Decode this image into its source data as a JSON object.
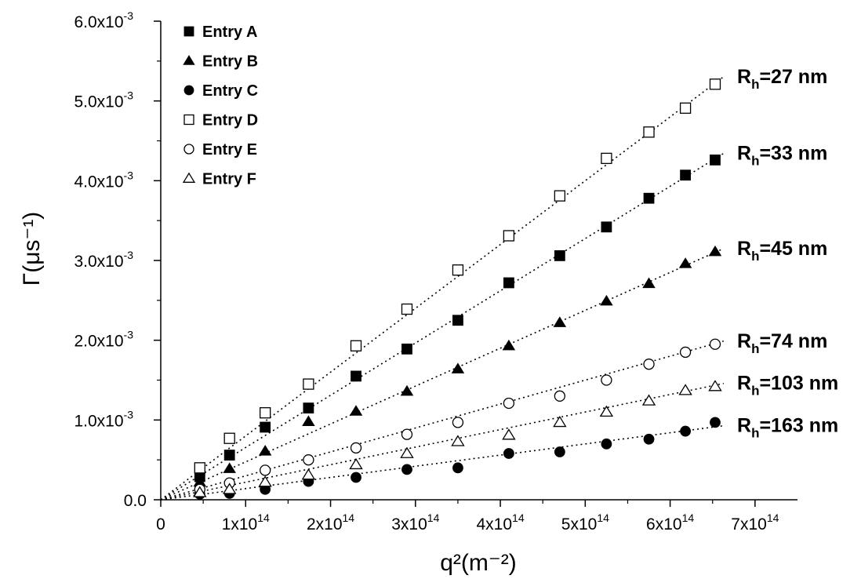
{
  "chart_data": {
    "type": "scatter",
    "title": "",
    "xlabel": "q²(m⁻²)",
    "ylabel": "Γ(μs⁻¹)",
    "xlim": [
      0,
      750000000000000.0
    ],
    "ylim": [
      0,
      0.006
    ],
    "x_ticks": [
      {
        "value": 0,
        "mantissa": "0",
        "exp": ""
      },
      {
        "value": 100000000000000.0,
        "mantissa": "1x10",
        "exp": "14"
      },
      {
        "value": 200000000000000.0,
        "mantissa": "2x10",
        "exp": "14"
      },
      {
        "value": 300000000000000.0,
        "mantissa": "3x10",
        "exp": "14"
      },
      {
        "value": 400000000000000.0,
        "mantissa": "4x10",
        "exp": "14"
      },
      {
        "value": 500000000000000.0,
        "mantissa": "5x10",
        "exp": "14"
      },
      {
        "value": 600000000000000.0,
        "mantissa": "6x10",
        "exp": "14"
      },
      {
        "value": 700000000000000.0,
        "mantissa": "7x10",
        "exp": "14"
      }
    ],
    "y_ticks": [
      {
        "value": 0,
        "mantissa": "0.0",
        "exp": ""
      },
      {
        "value": 0.001,
        "mantissa": "1.0x10",
        "exp": "-3"
      },
      {
        "value": 0.002,
        "mantissa": "2.0x10",
        "exp": "-3"
      },
      {
        "value": 0.003,
        "mantissa": "3.0x10",
        "exp": "-3"
      },
      {
        "value": 0.004,
        "mantissa": "4.0x10",
        "exp": "-3"
      },
      {
        "value": 0.005,
        "mantissa": "5.0x10",
        "exp": "-3"
      },
      {
        "value": 0.006,
        "mantissa": "6.0x10",
        "exp": "-3"
      }
    ],
    "legend_position": "top-left",
    "grid": false,
    "series": [
      {
        "name": "Entry A",
        "marker": "square-filled",
        "x": [
          46000000000000.0,
          81000000000000.0,
          123000000000000.0,
          174000000000000.0,
          230000000000000.0,
          290000000000000.0,
          350000000000000.0,
          410000000000000.0,
          470000000000000.0,
          525000000000000.0,
          575000000000000.0,
          618000000000000.0,
          653000000000000.0
        ],
        "y": [
          0.00029,
          0.00056,
          0.00091,
          0.00115,
          0.00155,
          0.00189,
          0.00225,
          0.00272,
          0.00306,
          0.00342,
          0.00378,
          0.00407,
          0.00426
        ],
        "fit_slope": 6.55e-18,
        "fit_label": "=33 nm"
      },
      {
        "name": "Entry B",
        "marker": "triangle-filled",
        "x": [
          46000000000000.0,
          81000000000000.0,
          123000000000000.0,
          174000000000000.0,
          230000000000000.0,
          290000000000000.0,
          350000000000000.0,
          410000000000000.0,
          470000000000000.0,
          525000000000000.0,
          575000000000000.0,
          618000000000000.0,
          653000000000000.0
        ],
        "y": [
          0.00022,
          0.00039,
          0.00061,
          0.00098,
          0.00111,
          0.00136,
          0.00164,
          0.00193,
          0.00222,
          0.00249,
          0.00271,
          0.00296,
          0.00311
        ],
        "fit_slope": 4.75e-18,
        "fit_label": "=45 nm"
      },
      {
        "name": "Entry C",
        "marker": "circle-filled",
        "x": [
          46000000000000.0,
          81000000000000.0,
          123000000000000.0,
          174000000000000.0,
          230000000000000.0,
          290000000000000.0,
          350000000000000.0,
          410000000000000.0,
          470000000000000.0,
          525000000000000.0,
          575000000000000.0,
          618000000000000.0,
          653000000000000.0
        ],
        "y": [
          7e-05,
          8e-05,
          0.00013,
          0.00023,
          0.00028,
          0.00038,
          0.0004,
          0.00058,
          0.0006,
          0.0007,
          0.00076,
          0.00086,
          0.00097
        ],
        "fit_slope": 1.4e-18,
        "fit_label": "=163 nm"
      },
      {
        "name": "Entry D",
        "marker": "square-open",
        "x": [
          46000000000000.0,
          81000000000000.0,
          123000000000000.0,
          174000000000000.0,
          230000000000000.0,
          290000000000000.0,
          350000000000000.0,
          410000000000000.0,
          470000000000000.0,
          525000000000000.0,
          575000000000000.0,
          618000000000000.0,
          653000000000000.0
        ],
        "y": [
          0.0004,
          0.00077,
          0.00109,
          0.00145,
          0.00193,
          0.00239,
          0.00288,
          0.00331,
          0.00381,
          0.00428,
          0.00461,
          0.00491,
          0.00521
        ],
        "fit_slope": 8e-18,
        "fit_label": "=27 nm"
      },
      {
        "name": "Entry E",
        "marker": "circle-open",
        "x": [
          46000000000000.0,
          81000000000000.0,
          123000000000000.0,
          174000000000000.0,
          230000000000000.0,
          290000000000000.0,
          350000000000000.0,
          410000000000000.0,
          470000000000000.0,
          525000000000000.0,
          575000000000000.0,
          618000000000000.0,
          653000000000000.0
        ],
        "y": [
          0.00013,
          0.00021,
          0.00037,
          0.0005,
          0.00065,
          0.00082,
          0.00097,
          0.00121,
          0.0013,
          0.0015,
          0.0017,
          0.00185,
          0.00195
        ],
        "fit_slope": 3e-18,
        "fit_label": "=74 nm"
      },
      {
        "name": "Entry F",
        "marker": "triangle-open",
        "x": [
          46000000000000.0,
          81000000000000.0,
          123000000000000.0,
          174000000000000.0,
          230000000000000.0,
          290000000000000.0,
          350000000000000.0,
          410000000000000.0,
          470000000000000.0,
          525000000000000.0,
          575000000000000.0,
          618000000000000.0,
          653000000000000.0
        ],
        "y": [
          9e-05,
          0.00013,
          0.00022,
          0.00031,
          0.00044,
          0.00058,
          0.00073,
          0.00081,
          0.00097,
          0.0011,
          0.00124,
          0.00137,
          0.00142
        ],
        "fit_slope": 2.2e-18,
        "fit_label": "=103 nm"
      }
    ],
    "fit_label_prefix": "R",
    "fit_label_subscript": "h"
  }
}
